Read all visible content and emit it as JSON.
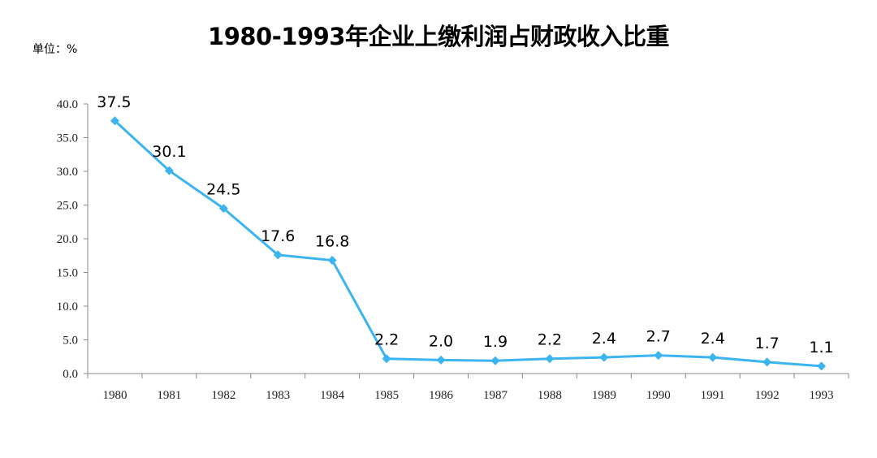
{
  "chart_data": {
    "type": "line",
    "title": "1980-1993年企业上缴利润占财政收入比重",
    "unit_label": "单位：%",
    "categories": [
      "1980",
      "1981",
      "1982",
      "1983",
      "1984",
      "1985",
      "1986",
      "1987",
      "1988",
      "1989",
      "1990",
      "1991",
      "1992",
      "1993"
    ],
    "values": [
      37.5,
      30.1,
      24.5,
      17.6,
      16.8,
      2.2,
      2.0,
      1.9,
      2.2,
      2.4,
      2.7,
      2.4,
      1.7,
      1.1
    ],
    "data_labels": [
      "37.5",
      "30.1",
      "24.5",
      "17.6",
      "16.8",
      "2.2",
      "2.0",
      "1.9",
      "2.2",
      "2.4",
      "2.7",
      "2.4",
      "1.7",
      "1.1"
    ],
    "yticks": [
      "0.0",
      "5.0",
      "10.0",
      "15.0",
      "20.0",
      "25.0",
      "30.0",
      "35.0",
      "40.0"
    ],
    "ylim": [
      0,
      40
    ],
    "grid": false,
    "legend": "none",
    "marker": "diamond",
    "color": "#3BB4F0"
  }
}
